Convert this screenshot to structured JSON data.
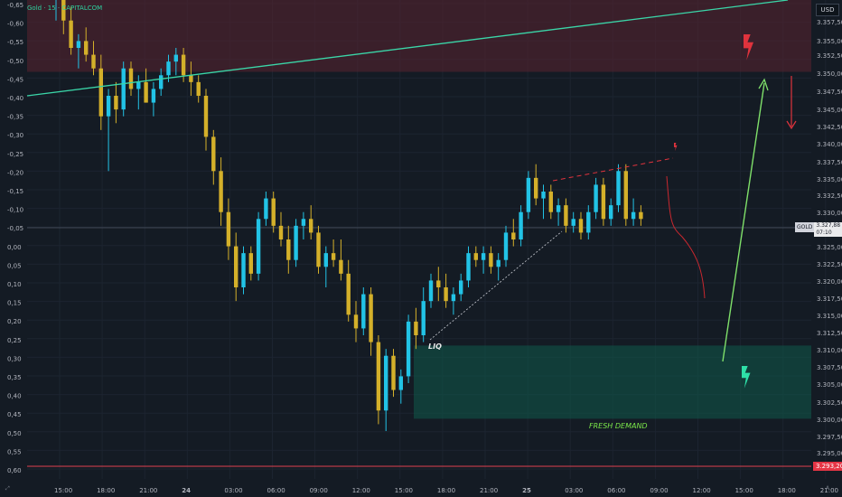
{
  "header": {
    "title": "Gold · 15 · CAPITALCOM",
    "currency": "USD"
  },
  "left_axis": [
    "-0,65",
    "-0,60",
    "-0,55",
    "-0,50",
    "-0,45",
    "-0,40",
    "-0,35",
    "-0,30",
    "-0,25",
    "-0,20",
    "-0,15",
    "-0,10",
    "-0,05",
    "0,00",
    "0,05",
    "0,10",
    "0,15",
    "0,20",
    "0,25",
    "0,30",
    "0,35",
    "0,40",
    "0,45",
    "0,50",
    "0,55",
    "0,60"
  ],
  "right_axis": [
    "3.357,50",
    "3.355,00",
    "3.352,50",
    "3.350,00",
    "3.347,50",
    "3.345,00",
    "3.342,50",
    "3.340,00",
    "3.337,50",
    "3.335,00",
    "3.332,50",
    "3.330,00",
    "3.325,00",
    "3.322,50",
    "3.320,00",
    "3.317,50",
    "3.315,00",
    "3.312,50",
    "3.310,00",
    "3.307,50",
    "3.305,00",
    "3.302,50",
    "3.300,00",
    "3.297,50",
    "3.295,00"
  ],
  "time_axis": [
    "15:00",
    "18:00",
    "21:00",
    "24",
    "03:00",
    "06:00",
    "09:00",
    "12:00",
    "15:00",
    "18:00",
    "21:00",
    "25",
    "03:00",
    "06:00",
    "09:00",
    "12:00",
    "15:00",
    "18:00",
    "21:00"
  ],
  "current_price": {
    "symbol": "GOLD",
    "value": "3.327,88",
    "countdown": "07:10"
  },
  "support_line_price": "3.293,20",
  "annotations": {
    "liq": "LIQ",
    "fresh_demand": "FRESH DEMAND"
  },
  "corner_left": "⤢",
  "corner_right": "A",
  "colors": {
    "background": "#141b24",
    "bull_candle": "#22c3e6",
    "bear_candle": "#d4b02a",
    "trend_line": "#3ad6a8",
    "supply_zone": "#5a2230",
    "demand_zone": "#0f5548",
    "red_arrow": "#e0333d",
    "green_arrow": "#7fe06a",
    "support_line": "#e04050"
  },
  "icons": [
    "red-lightning-icon",
    "green-lightning-icon",
    "mini-red-lightning-icon"
  ],
  "chart_data": {
    "type": "candlestick",
    "timeframe_minutes": 15,
    "ylim": [
      3290,
      3360
    ],
    "trend_line": [
      [
        3346.8,
        3362.5
      ]
    ],
    "supply_zone": [
      3349.5,
      3360
    ],
    "demand_zone": [
      3298.8,
      3309.5
    ],
    "support_level": 3293.2,
    "current_price": 3327.88,
    "candles": [
      [
        3360,
        3363,
        3357,
        3361
      ],
      [
        3361,
        3362,
        3355,
        3357
      ],
      [
        3357,
        3359,
        3352,
        3353
      ],
      [
        3353,
        3355,
        3350,
        3354
      ],
      [
        3354,
        3356,
        3351,
        3352
      ],
      [
        3352,
        3354,
        3349,
        3350
      ],
      [
        3350,
        3352,
        3341,
        3343
      ],
      [
        3343,
        3347,
        3335,
        3346
      ],
      [
        3346,
        3348,
        3342,
        3344
      ],
      [
        3344,
        3351,
        3343,
        3350
      ],
      [
        3350,
        3351,
        3346,
        3347
      ],
      [
        3347,
        3349,
        3344,
        3348
      ],
      [
        3348,
        3350,
        3345,
        3345
      ],
      [
        3345,
        3348,
        3343,
        3347
      ],
      [
        3347,
        3350,
        3346,
        3349
      ],
      [
        3349,
        3352,
        3348,
        3351
      ],
      [
        3351,
        3353,
        3349,
        3352
      ],
      [
        3352,
        3353,
        3348,
        3349
      ],
      [
        3349,
        3351,
        3346,
        3348
      ],
      [
        3348,
        3349,
        3345,
        3346
      ],
      [
        3346,
        3347,
        3338,
        3340
      ],
      [
        3340,
        3341,
        3333,
        3335
      ],
      [
        3335,
        3337,
        3327,
        3329
      ],
      [
        3329,
        3331,
        3322,
        3324
      ],
      [
        3324,
        3326,
        3316,
        3318
      ],
      [
        3318,
        3324,
        3317,
        3323
      ],
      [
        3323,
        3324,
        3319,
        3320
      ],
      [
        3320,
        3329,
        3319,
        3328
      ],
      [
        3328,
        3332,
        3327,
        3331
      ],
      [
        3331,
        3332,
        3326,
        3327
      ],
      [
        3327,
        3329,
        3324,
        3325
      ],
      [
        3325,
        3327,
        3320,
        3322
      ],
      [
        3322,
        3328,
        3321,
        3327
      ],
      [
        3327,
        3329,
        3325,
        3328
      ],
      [
        3328,
        3330,
        3325,
        3326
      ],
      [
        3326,
        3327,
        3320,
        3321
      ],
      [
        3321,
        3324,
        3318,
        3323
      ],
      [
        3323,
        3325,
        3321,
        3322
      ],
      [
        3322,
        3325,
        3319,
        3320
      ],
      [
        3320,
        3322,
        3313,
        3314
      ],
      [
        3314,
        3316,
        3310,
        3312
      ],
      [
        3312,
        3318,
        3311,
        3317
      ],
      [
        3317,
        3318,
        3308,
        3310
      ],
      [
        3310,
        3311,
        3298,
        3300
      ],
      [
        3300,
        3309,
        3297,
        3308
      ],
      [
        3308,
        3309,
        3302,
        3303
      ],
      [
        3303,
        3306,
        3301,
        3305
      ],
      [
        3305,
        3314,
        3304,
        3313
      ],
      [
        3313,
        3315,
        3309,
        3311
      ],
      [
        3311,
        3318,
        3310,
        3316
      ],
      [
        3316,
        3320,
        3315,
        3319
      ],
      [
        3319,
        3321,
        3316,
        3318
      ],
      [
        3318,
        3320,
        3315,
        3316
      ],
      [
        3316,
        3318,
        3314,
        3317
      ],
      [
        3317,
        3320,
        3316,
        3319
      ],
      [
        3319,
        3324,
        3318,
        3323
      ],
      [
        3323,
        3324,
        3321,
        3322
      ],
      [
        3322,
        3324,
        3320,
        3323
      ],
      [
        3323,
        3324,
        3320,
        3321
      ],
      [
        3321,
        3323,
        3319,
        3322
      ],
      [
        3322,
        3327,
        3321,
        3326
      ],
      [
        3326,
        3328,
        3324,
        3325
      ],
      [
        3325,
        3330,
        3324,
        3329
      ],
      [
        3329,
        3335,
        3328,
        3334
      ],
      [
        3334,
        3336,
        3330,
        3331
      ],
      [
        3331,
        3333,
        3328,
        3332
      ],
      [
        3332,
        3333,
        3328,
        3329
      ],
      [
        3329,
        3331,
        3327,
        3330
      ],
      [
        3330,
        3331,
        3326,
        3327
      ],
      [
        3327,
        3329,
        3326,
        3328
      ],
      [
        3328,
        3329,
        3325,
        3326
      ],
      [
        3326,
        3330,
        3325,
        3329
      ],
      [
        3329,
        3334,
        3328,
        3333
      ],
      [
        3333,
        3334,
        3327,
        3328
      ],
      [
        3328,
        3331,
        3327,
        3330
      ],
      [
        3330,
        3336,
        3329,
        3335
      ],
      [
        3335,
        3336,
        3327,
        3328
      ],
      [
        3328,
        3331,
        3327,
        3329
      ],
      [
        3329,
        3330,
        3327,
        3328
      ]
    ]
  }
}
